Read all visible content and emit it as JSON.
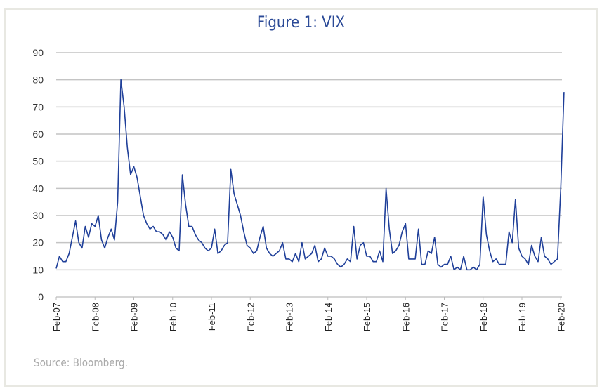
{
  "chart_data": {
    "type": "line",
    "title": "Figure 1:  VIX",
    "xlabel": "",
    "ylabel": "",
    "ylim": [
      0,
      90
    ],
    "yticks": [
      0,
      10,
      20,
      30,
      40,
      50,
      60,
      70,
      80,
      90
    ],
    "xticks": [
      "Feb-07",
      "Feb-08",
      "Feb-09",
      "Feb-10",
      "Feb-11",
      "Feb-12",
      "Feb-13",
      "Feb-14",
      "Feb-15",
      "Feb-16",
      "Feb-17",
      "Feb-18",
      "Feb-19",
      "Feb-20"
    ],
    "grid": true,
    "legend": "none",
    "line_color": "#1f3f99",
    "series": [
      {
        "start": "Feb-07",
        "frequency": "monthly",
        "values": [
          10.5,
          15,
          13,
          13,
          16,
          22,
          28,
          20,
          18,
          26,
          22,
          27,
          26,
          30,
          21,
          18,
          22,
          25,
          21,
          35,
          80,
          70,
          55,
          45,
          48,
          44,
          37,
          30,
          27,
          25,
          26,
          24,
          24,
          23,
          21,
          24,
          22,
          18,
          17,
          45,
          34,
          26,
          26,
          23,
          21,
          20,
          18,
          17,
          18,
          25,
          16,
          17,
          19,
          20,
          47,
          38,
          34,
          30,
          24,
          19,
          18,
          16,
          17,
          22,
          26,
          18,
          16,
          15,
          16,
          17,
          20,
          14,
          14,
          13,
          16,
          13,
          20,
          14,
          15,
          16,
          19,
          13,
          14,
          18,
          15,
          15,
          14,
          12,
          11,
          12,
          14,
          13,
          26,
          14,
          19,
          20,
          15,
          15,
          13,
          13,
          17,
          13,
          40,
          25,
          16,
          17,
          19,
          24,
          27,
          14,
          14,
          14,
          25,
          12,
          12,
          17,
          16,
          22,
          12,
          11,
          12,
          12,
          15,
          10,
          11,
          10,
          15,
          10,
          10,
          11,
          10,
          12,
          37,
          23,
          17,
          13,
          14,
          12,
          12,
          12,
          24,
          20,
          36,
          18,
          15,
          14,
          12,
          19,
          15,
          13,
          22,
          15,
          14,
          12,
          13,
          14,
          40,
          75.5
        ]
      }
    ],
    "source": "Source: Bloomberg."
  }
}
